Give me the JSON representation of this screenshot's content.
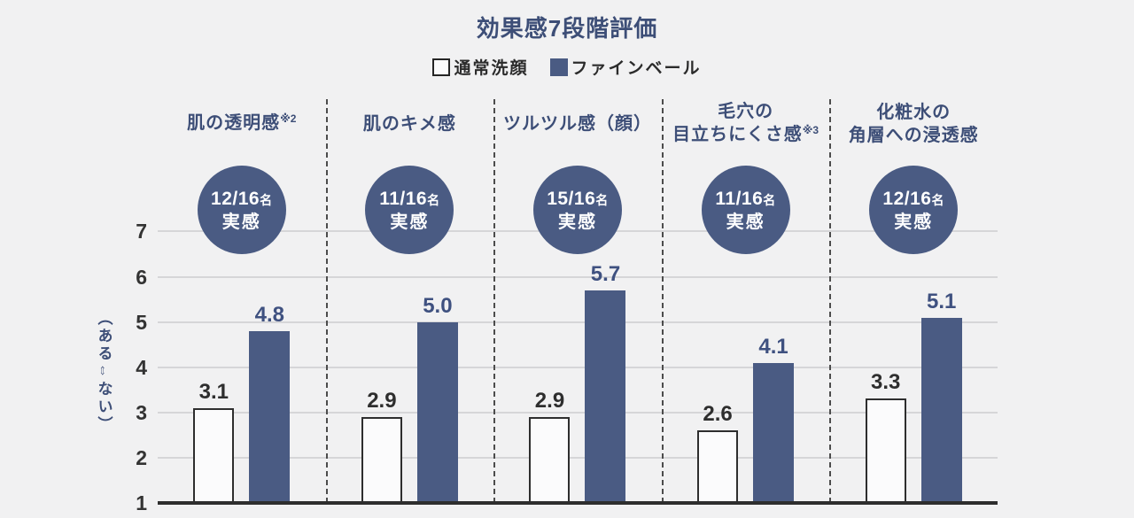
{
  "title": "効果感7段階評価",
  "legend": {
    "items": [
      {
        "label": "通常洗顔",
        "swatch": "outline"
      },
      {
        "label": "ファインベール",
        "swatch": "filled"
      }
    ]
  },
  "colors": {
    "background": "#f1f1f2",
    "navy": "#4a5b83",
    "navy_text": "#3d4e77",
    "dark_text": "#2e2e2e",
    "grid_line": "#d6d6d8",
    "axis_line": "#2e2e2e",
    "white_bar_fill": "#fbfbfc"
  },
  "chart_data": {
    "type": "bar",
    "title": "効果感7段階評価",
    "ylabel": "（ある⇔ない）",
    "ylim": [
      1,
      7
    ],
    "yticks": [
      1,
      2,
      3,
      4,
      5,
      6,
      7
    ],
    "grid": true,
    "legend_position": "top",
    "categories": [
      "肌の透明感※2",
      "肌のキメ感",
      "ツルツル感（顔）",
      "毛穴の目立ちにくさ感※3",
      "化粧水の角層への浸透感"
    ],
    "series": [
      {
        "name": "通常洗顔",
        "values": [
          3.1,
          2.9,
          2.9,
          2.6,
          3.3
        ]
      },
      {
        "name": "ファインベール",
        "values": [
          4.8,
          5.0,
          5.7,
          4.1,
          5.1
        ]
      }
    ],
    "badges": [
      "12/16名 実感",
      "11/16名 実感",
      "15/16名 実感",
      "11/16名 実感",
      "12/16名 実感"
    ]
  },
  "columns": [
    {
      "title_lines": [
        {
          "text": "肌の透明感",
          "sup": "※2"
        }
      ],
      "badge": {
        "count": "12/16",
        "unit": "名",
        "label": "実感"
      }
    },
    {
      "title_lines": [
        {
          "text": "肌のキメ感"
        }
      ],
      "badge": {
        "count": "11/16",
        "unit": "名",
        "label": "実感"
      }
    },
    {
      "title_lines": [
        {
          "text": "ツルツル感（顔）"
        }
      ],
      "badge": {
        "count": "15/16",
        "unit": "名",
        "label": "実感"
      }
    },
    {
      "title_lines": [
        {
          "text": "毛穴の"
        },
        {
          "text": "目立ちにくさ感",
          "sup": "※3"
        }
      ],
      "badge": {
        "count": "11/16",
        "unit": "名",
        "label": "実感"
      }
    },
    {
      "title_lines": [
        {
          "text": "化粧水の"
        },
        {
          "text": "角層への浸透感"
        }
      ],
      "badge": {
        "count": "12/16",
        "unit": "名",
        "label": "実感"
      }
    }
  ]
}
